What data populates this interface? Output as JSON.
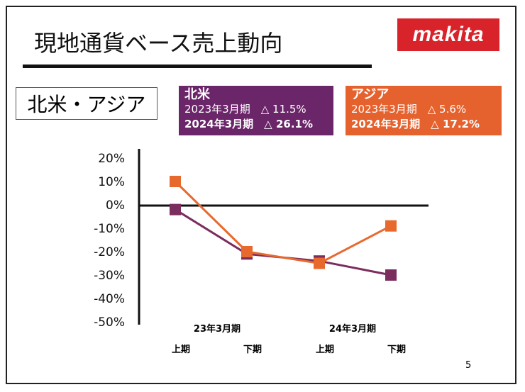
{
  "header": {
    "title": "現地通貨ベース売上動向",
    "logo_text": "makita",
    "region": "北米・アジア",
    "page_number": "5"
  },
  "boxes": [
    {
      "name": "北米",
      "color": "#6b2569",
      "line1": "2023年3月期　△ 11.5%",
      "line2": "2024年3月期　△ 26.1%"
    },
    {
      "name": "アジア",
      "color": "#e5622e",
      "line1": "2023年3月期　△ 5.6%",
      "line2": "2024年3月期　△ 17.2%"
    }
  ],
  "chart_data": {
    "type": "line",
    "categories": [
      "上期",
      "下期",
      "上期",
      "下期"
    ],
    "groups": [
      "23年3月期",
      "24年3月期"
    ],
    "yticks": [
      "20%",
      "10%",
      "0%",
      "-10%",
      "-20%",
      "-30%",
      "-40%",
      "-50%"
    ],
    "ylim": [
      -50,
      20
    ],
    "series": [
      {
        "color": "#7b2d5e",
        "values": [
          -2,
          -21,
          -24,
          -30
        ]
      },
      {
        "color": "#e8692d",
        "values": [
          10,
          -20,
          -25,
          -9
        ]
      }
    ]
  }
}
